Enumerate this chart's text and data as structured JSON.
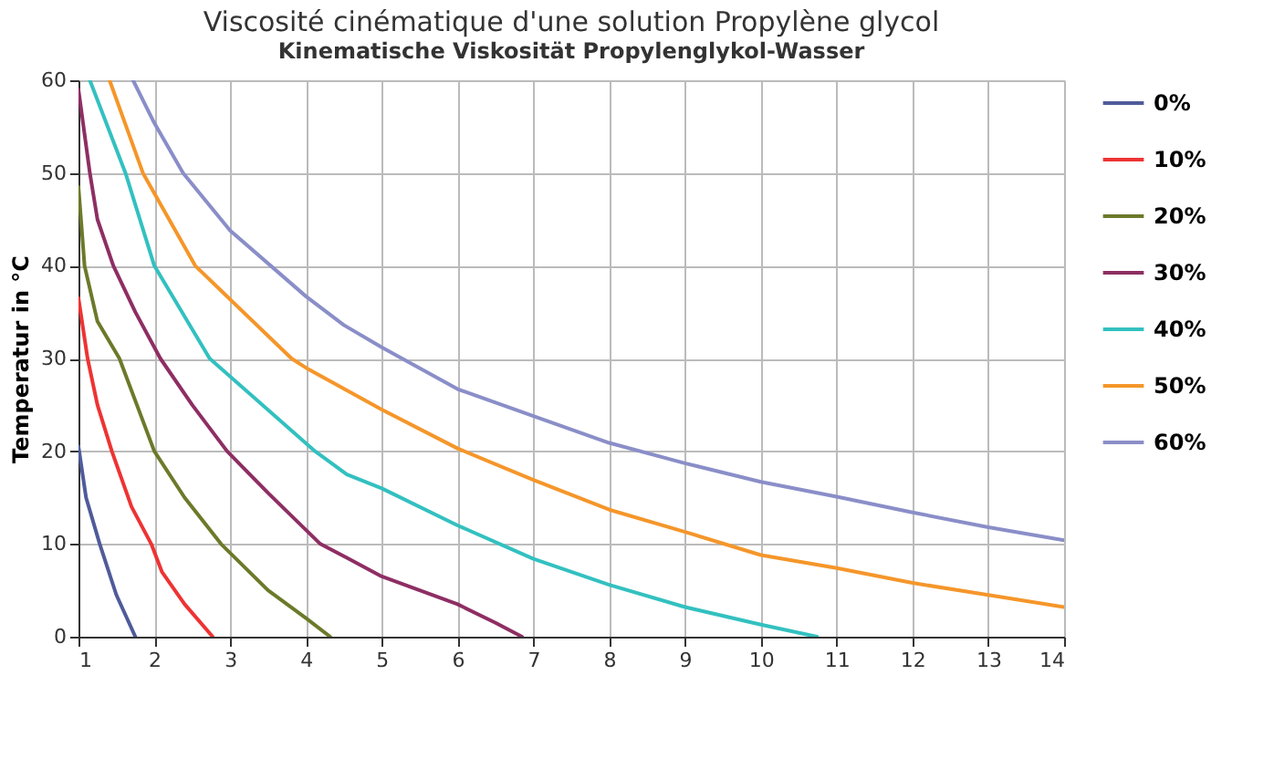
{
  "chart_data": {
    "type": "line",
    "title": "Viscosité cinématique d'une solution Propylène glycol",
    "subtitle": "Kinematische Viskosität Propylenglykol-Wasser",
    "ylabel": "Temperatur in °C",
    "xlim": [
      1,
      14
    ],
    "xticks": [
      1,
      2,
      3,
      4,
      5,
      6,
      7,
      8,
      9,
      10,
      11,
      12,
      13,
      14
    ],
    "ylim": [
      0,
      60
    ],
    "yticks": [
      0,
      10,
      20,
      30,
      40,
      50,
      60
    ],
    "grid": true,
    "legend": "right",
    "line_style": "solid",
    "series": [
      {
        "name": "0%",
        "color": "#4f5b9a",
        "x": [
          1,
          1.1,
          1.28,
          1.5,
          1.75
        ],
        "values": [
          20.5,
          15,
          10,
          4.5,
          0
        ]
      },
      {
        "name": "10%",
        "color": "#ee3333",
        "x": [
          1,
          1.12,
          1.25,
          1.44,
          1.7,
          1.96,
          2.1,
          2.4,
          2.77
        ],
        "values": [
          36.5,
          30,
          25,
          20,
          14,
          10,
          7,
          3.5,
          0
        ]
      },
      {
        "name": "20%",
        "color": "#6b7a2a",
        "x": [
          1,
          1.08,
          1.25,
          1.54,
          2,
          2.4,
          2.88,
          3.5,
          4.0,
          4.32
        ],
        "values": [
          48.5,
          40,
          34,
          30,
          20,
          15,
          10,
          5,
          2,
          0
        ]
      },
      {
        "name": "30%",
        "color": "#8e2e63",
        "x": [
          1,
          1.15,
          1.25,
          1.46,
          1.75,
          2.08,
          2.5,
          2.96,
          3.5,
          4.19,
          4.54,
          5,
          5.5,
          6,
          6.5,
          6.85
        ],
        "values": [
          59,
          50,
          45,
          40,
          35,
          30,
          25,
          20,
          15.5,
          10,
          8.5,
          6.5,
          5,
          3.5,
          1.5,
          0
        ]
      },
      {
        "name": "40%",
        "color": "#33c0c0",
        "x": [
          1.15,
          1.62,
          2,
          2.73,
          4.12,
          4.54,
          5,
          6,
          7,
          8,
          9,
          10,
          10.74
        ],
        "values": [
          60,
          50,
          40,
          30,
          20,
          17.5,
          16,
          12,
          8.4,
          5.6,
          3.2,
          1.3,
          0
        ]
      },
      {
        "name": "50%",
        "color": "#f5962a",
        "x": [
          1.41,
          1.85,
          2.54,
          3.81,
          4,
          5,
          6,
          7,
          8,
          9,
          10,
          11,
          12,
          13,
          14
        ],
        "values": [
          60,
          50,
          40,
          30,
          29,
          24.5,
          20.3,
          16.9,
          13.7,
          11.3,
          8.8,
          7.4,
          5.8,
          4.5,
          3.2
        ]
      },
      {
        "name": "60%",
        "color": "#8a8ec8",
        "x": [
          1.72,
          2,
          2.38,
          3,
          4,
          4.5,
          5,
          6,
          7,
          8,
          9,
          10,
          11,
          12,
          13,
          14
        ],
        "values": [
          60,
          55.4,
          50,
          43.8,
          36.7,
          33.6,
          31.2,
          26.7,
          23.8,
          20.9,
          18.7,
          16.7,
          15.1,
          13.4,
          11.8,
          10.4
        ]
      }
    ]
  }
}
